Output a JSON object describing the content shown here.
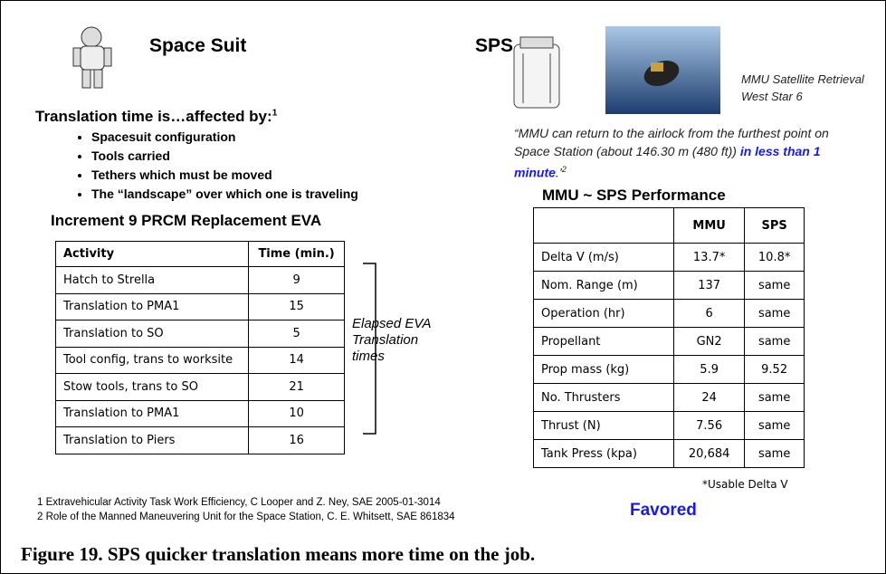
{
  "left": {
    "title": "Space Suit",
    "heading": "Translation time is…affected by:",
    "heading_note": "1",
    "bullets": [
      "Spacesuit configuration",
      "Tools carried",
      "Tethers which must be moved",
      "The “landscape” over which one is traveling"
    ],
    "table_title": "Increment 9 PRCM Replacement EVA",
    "table": {
      "header": [
        "Activity",
        "Time (min.)"
      ],
      "rows": [
        [
          "Hatch to Strella",
          "9"
        ],
        [
          "Translation to PMA1",
          "15"
        ],
        [
          "Translation to SO",
          "5"
        ],
        [
          "Tool config, trans to worksite",
          "14"
        ],
        [
          "Stow tools, trans to SO",
          "21"
        ],
        [
          "Translation to PMA1",
          "10"
        ],
        [
          "Translation to Piers",
          "16"
        ]
      ]
    },
    "bracket_label": [
      "Elapsed EVA",
      "Translation",
      "times"
    ]
  },
  "right": {
    "title": "SPS",
    "photo_caption": [
      "MMU Satellite Retrieval",
      "West Star 6"
    ],
    "quote": {
      "text": "“MMU can return to the airlock from the furthest point on Space Station (about 146.30 m (480 ft))",
      "emphasis": "in less than 1 minute",
      "end": ".’",
      "note": "2"
    },
    "table_title": "MMU ~ SPS Performance",
    "table": {
      "header": [
        "",
        "MMU",
        "SPS"
      ],
      "rows": [
        [
          "Delta V (m/s)",
          "13.7*",
          "10.8*"
        ],
        [
          "Nom. Range (m)",
          "137",
          "same"
        ],
        [
          "Operation (hr)",
          "6",
          "same"
        ],
        [
          "Propellant",
          "GN2",
          "same"
        ],
        [
          "Prop mass (kg)",
          "5.9",
          "9.52"
        ],
        [
          "No. Thrusters",
          "24",
          "same"
        ],
        [
          "Thrust (N)",
          "7.56",
          "same"
        ],
        [
          "Tank Press (kpa)",
          "20,684",
          "same"
        ]
      ]
    },
    "table_note": "*Usable Delta V",
    "favored": "Favored"
  },
  "footnotes": [
    "1 Extravehicular Activity Task Work Efficiency, C Looper and Z. Ney, SAE 2005-01-3014",
    "2 Role of the Manned Maneuvering Unit for the Space Station, C. E. Whitsett, SAE 861834"
  ],
  "caption": "Figure 19. SPS quicker translation means more time on the job."
}
